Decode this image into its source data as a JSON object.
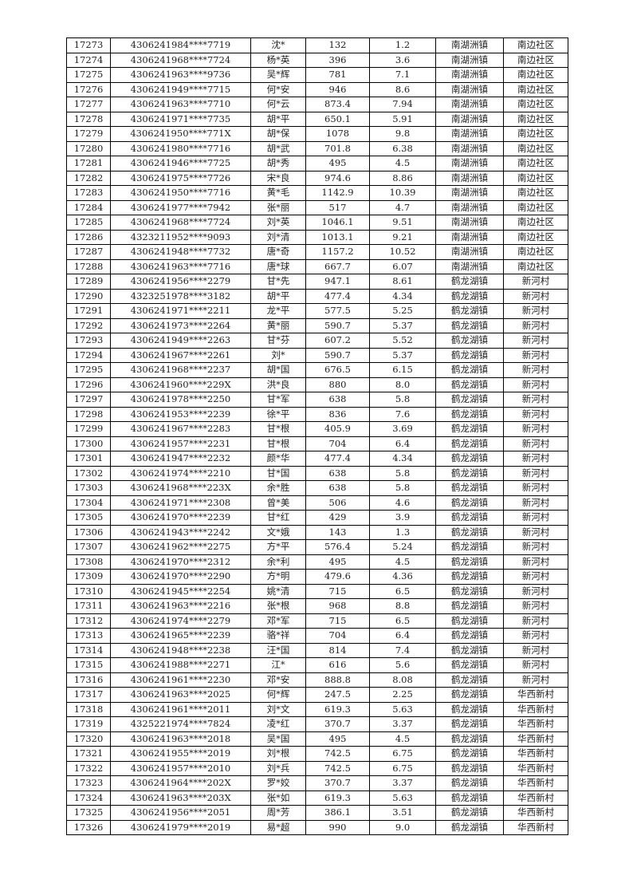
{
  "rows": [
    [
      "17273",
      "4306241984****7719",
      "沈*",
      "132",
      "1.2",
      "南湖洲镇",
      "南边社区"
    ],
    [
      "17274",
      "4306241968****7724",
      "杨*英",
      "396",
      "3.6",
      "南湖洲镇",
      "南边社区"
    ],
    [
      "17275",
      "4306241963****9736",
      "吴*辉",
      "781",
      "7.1",
      "南湖洲镇",
      "南边社区"
    ],
    [
      "17276",
      "4306241949****7715",
      "何*安",
      "946",
      "8.6",
      "南湖洲镇",
      "南边社区"
    ],
    [
      "17277",
      "4306241963****7710",
      "何*云",
      "873.4",
      "7.94",
      "南湖洲镇",
      "南边社区"
    ],
    [
      "17278",
      "4306241971****7735",
      "胡*平",
      "650.1",
      "5.91",
      "南湖洲镇",
      "南边社区"
    ],
    [
      "17279",
      "4306241950****771X",
      "胡*保",
      "1078",
      "9.8",
      "南湖洲镇",
      "南边社区"
    ],
    [
      "17280",
      "4306241980****7716",
      "胡*武",
      "701.8",
      "6.38",
      "南湖洲镇",
      "南边社区"
    ],
    [
      "17281",
      "4306241946****7725",
      "胡*秀",
      "495",
      "4.5",
      "南湖洲镇",
      "南边社区"
    ],
    [
      "17282",
      "4306241975****7726",
      "宋*良",
      "974.6",
      "8.86",
      "南湖洲镇",
      "南边社区"
    ],
    [
      "17283",
      "4306241950****7716",
      "黄*毛",
      "1142.9",
      "10.39",
      "南湖洲镇",
      "南边社区"
    ],
    [
      "17284",
      "4306241977****7942",
      "张*丽",
      "517",
      "4.7",
      "南湖洲镇",
      "南边社区"
    ],
    [
      "17285",
      "4306241968****7724",
      "刘*英",
      "1046.1",
      "9.51",
      "南湖洲镇",
      "南边社区"
    ],
    [
      "17286",
      "4323211952****9093",
      "刘*清",
      "1013.1",
      "9.21",
      "南湖洲镇",
      "南边社区"
    ],
    [
      "17287",
      "4306241948****7732",
      "唐*奇",
      "1157.2",
      "10.52",
      "南湖洲镇",
      "南边社区"
    ],
    [
      "17288",
      "4306241963****7716",
      "唐*球",
      "667.7",
      "6.07",
      "南湖洲镇",
      "南边社区"
    ],
    [
      "17289",
      "4306241956****2279",
      "甘*先",
      "947.1",
      "8.61",
      "鹤龙湖镇",
      "新河村"
    ],
    [
      "17290",
      "4323251978****3182",
      "胡*平",
      "477.4",
      "4.34",
      "鹤龙湖镇",
      "新河村"
    ],
    [
      "17291",
      "4306241971****2211",
      "龙*平",
      "577.5",
      "5.25",
      "鹤龙湖镇",
      "新河村"
    ],
    [
      "17292",
      "4306241973****2264",
      "黄*丽",
      "590.7",
      "5.37",
      "鹤龙湖镇",
      "新河村"
    ],
    [
      "17293",
      "4306241949****2263",
      "甘*芬",
      "607.2",
      "5.52",
      "鹤龙湖镇",
      "新河村"
    ],
    [
      "17294",
      "4306241967****2261",
      "刘*",
      "590.7",
      "5.37",
      "鹤龙湖镇",
      "新河村"
    ],
    [
      "17295",
      "4306241968****2237",
      "胡*国",
      "676.5",
      "6.15",
      "鹤龙湖镇",
      "新河村"
    ],
    [
      "17296",
      "4306241960****229X",
      "洪*良",
      "880",
      "8.0",
      "鹤龙湖镇",
      "新河村"
    ],
    [
      "17297",
      "4306241978****2250",
      "甘*军",
      "638",
      "5.8",
      "鹤龙湖镇",
      "新河村"
    ],
    [
      "17298",
      "4306241953****2239",
      "徐*平",
      "836",
      "7.6",
      "鹤龙湖镇",
      "新河村"
    ],
    [
      "17299",
      "4306241967****2283",
      "甘*根",
      "405.9",
      "3.69",
      "鹤龙湖镇",
      "新河村"
    ],
    [
      "17300",
      "4306241957****2231",
      "甘*根",
      "704",
      "6.4",
      "鹤龙湖镇",
      "新河村"
    ],
    [
      "17301",
      "4306241947****2232",
      "颜*华",
      "477.4",
      "4.34",
      "鹤龙湖镇",
      "新河村"
    ],
    [
      "17302",
      "4306241974****2210",
      "甘*国",
      "638",
      "5.8",
      "鹤龙湖镇",
      "新河村"
    ],
    [
      "17303",
      "4306241968****223X",
      "余*胜",
      "638",
      "5.8",
      "鹤龙湖镇",
      "新河村"
    ],
    [
      "17304",
      "4306241971****2308",
      "曾*美",
      "506",
      "4.6",
      "鹤龙湖镇",
      "新河村"
    ],
    [
      "17305",
      "4306241970****2239",
      "甘*红",
      "429",
      "3.9",
      "鹤龙湖镇",
      "新河村"
    ],
    [
      "17306",
      "4306241943****2242",
      "文*娥",
      "143",
      "1.3",
      "鹤龙湖镇",
      "新河村"
    ],
    [
      "17307",
      "4306241962****2275",
      "方*平",
      "576.4",
      "5.24",
      "鹤龙湖镇",
      "新河村"
    ],
    [
      "17308",
      "4306241970****2312",
      "余*利",
      "495",
      "4.5",
      "鹤龙湖镇",
      "新河村"
    ],
    [
      "17309",
      "4306241970****2290",
      "方*明",
      "479.6",
      "4.36",
      "鹤龙湖镇",
      "新河村"
    ],
    [
      "17310",
      "4306241945****2254",
      "姚*清",
      "715",
      "6.5",
      "鹤龙湖镇",
      "新河村"
    ],
    [
      "17311",
      "4306241963****2216",
      "张*根",
      "968",
      "8.8",
      "鹤龙湖镇",
      "新河村"
    ],
    [
      "17312",
      "4306241974****2279",
      "邓*军",
      "715",
      "6.5",
      "鹤龙湖镇",
      "新河村"
    ],
    [
      "17313",
      "4306241965****2239",
      "骆*祥",
      "704",
      "6.4",
      "鹤龙湖镇",
      "新河村"
    ],
    [
      "17314",
      "4306241948****2238",
      "汪*国",
      "814",
      "7.4",
      "鹤龙湖镇",
      "新河村"
    ],
    [
      "17315",
      "4306241988****2271",
      "江*",
      "616",
      "5.6",
      "鹤龙湖镇",
      "新河村"
    ],
    [
      "17316",
      "4306241961****2230",
      "邓*安",
      "888.8",
      "8.08",
      "鹤龙湖镇",
      "新河村"
    ],
    [
      "17317",
      "4306241963****2025",
      "何*辉",
      "247.5",
      "2.25",
      "鹤龙湖镇",
      "华西新村"
    ],
    [
      "17318",
      "4306241961****2011",
      "刘*文",
      "619.3",
      "5.63",
      "鹤龙湖镇",
      "华西新村"
    ],
    [
      "17319",
      "4325221974****7824",
      "凌*红",
      "370.7",
      "3.37",
      "鹤龙湖镇",
      "华西新村"
    ],
    [
      "17320",
      "4306241963****2018",
      "吴*国",
      "495",
      "4.5",
      "鹤龙湖镇",
      "华西新村"
    ],
    [
      "17321",
      "4306241955****2019",
      "刘*根",
      "742.5",
      "6.75",
      "鹤龙湖镇",
      "华西新村"
    ],
    [
      "17322",
      "4306241957****2010",
      "刘*兵",
      "742.5",
      "6.75",
      "鹤龙湖镇",
      "华西新村"
    ],
    [
      "17323",
      "4306241964****202X",
      "罗*姣",
      "370.7",
      "3.37",
      "鹤龙湖镇",
      "华西新村"
    ],
    [
      "17324",
      "4306241963****203X",
      "张*如",
      "619.3",
      "5.63",
      "鹤龙湖镇",
      "华西新村"
    ],
    [
      "17325",
      "4306241956****2051",
      "周*芳",
      "386.1",
      "3.51",
      "鹤龙湖镇",
      "华西新村"
    ],
    [
      "17326",
      "4306241979****2019",
      "易*超",
      "990",
      "9.0",
      "鹤龙湖镇",
      "华西新村"
    ]
  ]
}
